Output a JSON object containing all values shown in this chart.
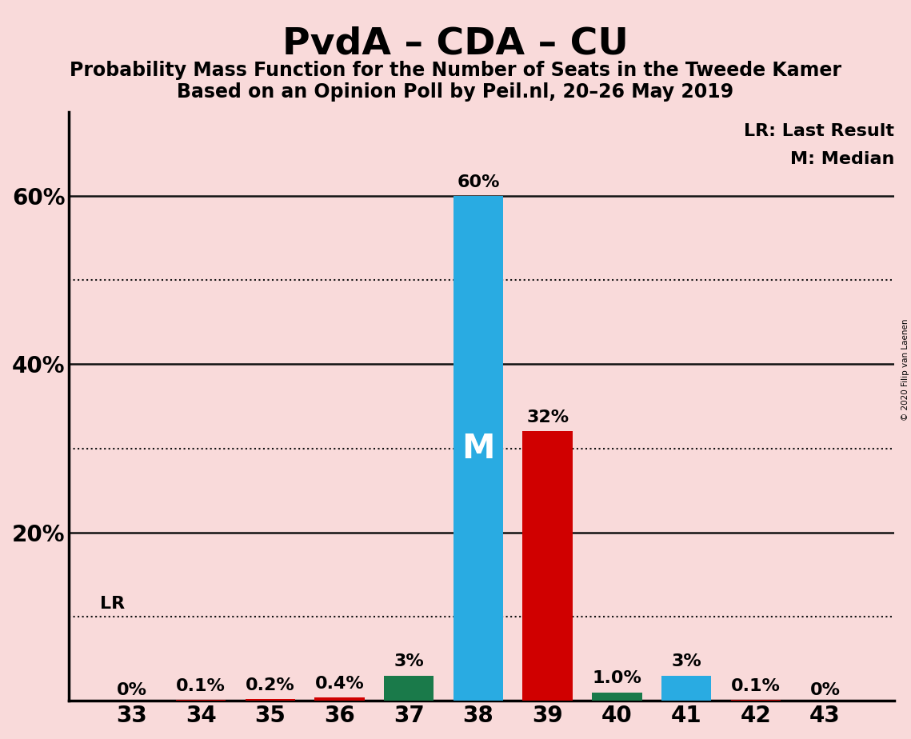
{
  "title": "PvdA – CDA – CU",
  "subtitle1": "Probability Mass Function for the Number of Seats in the Tweede Kamer",
  "subtitle2": "Based on an Opinion Poll by Peil.nl, 20–26 May 2019",
  "copyright": "© 2020 Filip van Laenen",
  "background_color": "#f9dada",
  "categories": [
    33,
    34,
    35,
    36,
    37,
    38,
    39,
    40,
    41,
    42,
    43
  ],
  "values": [
    0.0,
    0.001,
    0.002,
    0.004,
    0.03,
    0.6,
    0.32,
    0.01,
    0.03,
    0.001,
    0.0
  ],
  "labels": [
    "0%",
    "0.1%",
    "0.2%",
    "0.4%",
    "3%",
    "60%",
    "32%",
    "1.0%",
    "3%",
    "0.1%",
    "0%"
  ],
  "bar_colors": [
    "#d00000",
    "#d00000",
    "#d00000",
    "#d00000",
    "#1a7a4a",
    "#29abe2",
    "#d00000",
    "#1a7a4a",
    "#29abe2",
    "#d00000",
    "#d00000"
  ],
  "median_bar": 38,
  "lr_value": 0.1,
  "ylim": [
    0,
    0.7
  ],
  "legend_lr": "LR: Last Result",
  "legend_m": "M: Median",
  "grid_color": "#111111",
  "dotted_yticks": [
    0.1,
    0.3,
    0.5
  ],
  "solid_yticks": [
    0.2,
    0.4,
    0.6
  ],
  "ytick_positions": [
    0.2,
    0.4,
    0.6
  ],
  "ytick_labels": [
    "20%",
    "40%",
    "60%"
  ],
  "bar_width": 0.72,
  "title_fontsize": 34,
  "subtitle_fontsize": 17,
  "label_fontsize": 16,
  "tick_fontsize": 20,
  "legend_fontsize": 16
}
